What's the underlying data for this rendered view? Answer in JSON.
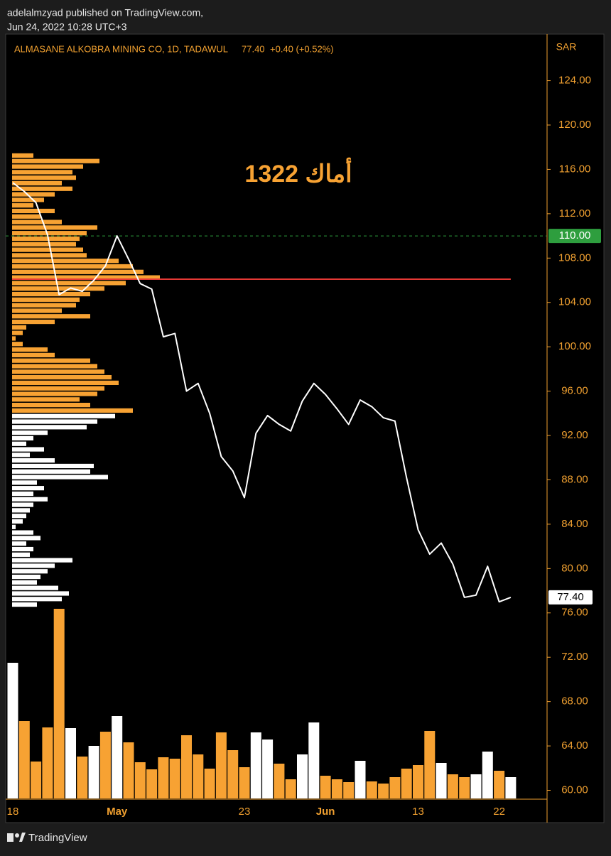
{
  "chart_data": {
    "type": "line",
    "source": "adelalmzyad published on TradingView.com,",
    "subtitle": "Jun 24, 2022 10:28 UTC+3",
    "title": "ALMASANE ALKOBRA MINING CO, 1D, TADAWUL",
    "legend_price": "77.40",
    "legend_change": "+0.40 (+0.52%)",
    "currency": "SAR",
    "annotation": "أماك 1322",
    "brand": "TradingView",
    "categories": [
      "18",
      null,
      null,
      null,
      null,
      null,
      null,
      null,
      null,
      "May",
      null,
      null,
      null,
      null,
      null,
      null,
      null,
      null,
      null,
      null,
      "23",
      null,
      null,
      null,
      null,
      null,
      null,
      "Jun",
      null,
      null,
      null,
      null,
      null,
      null,
      null,
      "13",
      null,
      null,
      null,
      null,
      null,
      null,
      "22",
      null
    ],
    "values": [
      114.8,
      114.0,
      113.0,
      110.1,
      104.7,
      105.3,
      105.0,
      106.0,
      107.3,
      110.0,
      107.9,
      105.7,
      105.2,
      100.9,
      101.2,
      96.0,
      96.7,
      94.0,
      90.1,
      88.8,
      86.4,
      92.2,
      93.8,
      93.0,
      92.4,
      95.1,
      96.7,
      95.7,
      94.4,
      93.0,
      95.2,
      94.6,
      93.6,
      93.3,
      88.2,
      83.5,
      81.3,
      82.3,
      80.4,
      77.4,
      77.6,
      80.2,
      77.0,
      77.4
    ],
    "color": "#ffffff",
    "volume": {
      "values": [
        191,
        109,
        52,
        100,
        267,
        99,
        59,
        74,
        94,
        116,
        79,
        51,
        41,
        58,
        56,
        89,
        62,
        42,
        93,
        68,
        44,
        93,
        83,
        49,
        27,
        62,
        107,
        32,
        27,
        23,
        53,
        24,
        21,
        30,
        42,
        47,
        95,
        50,
        34,
        30,
        34,
        66,
        39,
        30
      ],
      "colors": [
        "#ffffff",
        "#f7a233",
        "#f7a233",
        "#f7a233",
        "#f7a233",
        "#ffffff",
        "#f7a233",
        "#ffffff",
        "#f7a233",
        "#ffffff",
        "#f7a233",
        "#f7a233",
        "#f7a233",
        "#f7a233",
        "#f7a233",
        "#f7a233",
        "#f7a233",
        "#f7a233",
        "#f7a233",
        "#f7a233",
        "#f7a233",
        "#ffffff",
        "#ffffff",
        "#f7a233",
        "#f7a233",
        "#ffffff",
        "#ffffff",
        "#f7a233",
        "#f7a233",
        "#f7a233",
        "#ffffff",
        "#f7a233",
        "#f7a233",
        "#f7a233",
        "#f7a233",
        "#f7a233",
        "#f7a233",
        "#ffffff",
        "#f7a233",
        "#f7a233",
        "#ffffff",
        "#ffffff",
        "#f7a233",
        "#ffffff"
      ]
    },
    "volume_profile": [
      {
        "color": "#ffffff",
        "bins": [
          76.5,
          77,
          77.5,
          78,
          78.5,
          79,
          79.5,
          80,
          80.5,
          81,
          81.5,
          82,
          82.5,
          83,
          83.5,
          84,
          84.5,
          85,
          85.5,
          86,
          86.5,
          87,
          87.5,
          88,
          88.5,
          89,
          89.5,
          90,
          90.5,
          91,
          91.5,
          92,
          92.5,
          93,
          93.5,
          94
        ],
        "values": [
          35,
          70,
          80,
          65,
          35,
          40,
          50,
          60,
          85,
          25,
          30,
          20,
          40,
          30,
          5,
          15,
          20,
          25,
          30,
          50,
          30,
          45,
          35,
          135,
          110,
          115,
          60,
          25,
          45,
          20,
          30,
          50,
          105,
          120,
          145
        ]
      },
      {
        "color": "#f7a233",
        "bins": [
          94,
          94.5,
          95,
          95.5,
          96,
          96.5,
          97,
          97.5,
          98,
          98.5,
          99,
          99.5,
          100,
          100.5,
          101,
          101.5,
          102,
          102.5,
          103,
          103.5,
          104,
          104.5,
          105,
          105.5,
          106,
          106.5,
          107,
          107.5,
          108,
          108.5,
          109,
          109.5,
          110,
          110.5,
          111,
          111.5,
          112,
          112.5,
          113,
          113.5,
          114,
          114.5,
          115,
          115.5,
          116,
          116.5,
          117,
          117.5
        ],
        "values": [
          170,
          110,
          95,
          120,
          130,
          150,
          140,
          130,
          120,
          110,
          60,
          50,
          15,
          5,
          15,
          20,
          60,
          110,
          70,
          90,
          95,
          110,
          130,
          160,
          208,
          185,
          170,
          150,
          105,
          100,
          90,
          95,
          105,
          120,
          70,
          40,
          60,
          30,
          45,
          60,
          85,
          70,
          90,
          85,
          100,
          123,
          30
        ]
      }
    ],
    "poc_price": 106.1,
    "poc_color": "#e53935",
    "alert_price": {
      "value": 110,
      "label": "110.00"
    },
    "alert_color": "#2e9e3e",
    "last_price": {
      "value": 77.4,
      "label": "77.40"
    },
    "ylim": [
      59.2,
      128.2
    ],
    "yticks": [
      {
        "value": 60,
        "label": "60.00"
      },
      {
        "value": 64,
        "label": "64.00"
      },
      {
        "value": 68,
        "label": "68.00"
      },
      {
        "value": 72,
        "label": "72.00"
      },
      {
        "value": 76,
        "label": "76.00"
      },
      {
        "value": 80,
        "label": "80.00"
      },
      {
        "value": 84,
        "label": "84.00"
      },
      {
        "value": 88,
        "label": "88.00"
      },
      {
        "value": 92,
        "label": "92.00"
      },
      {
        "value": 96,
        "label": "96.00"
      },
      {
        "value": 100,
        "label": "100.00"
      },
      {
        "value": 104,
        "label": "104.00"
      },
      {
        "value": 108,
        "label": "108.00"
      },
      {
        "value": 112,
        "label": "112.00"
      },
      {
        "value": 116,
        "label": "116.00"
      },
      {
        "value": 120,
        "label": "120.00"
      },
      {
        "value": 124,
        "label": "124.00"
      }
    ],
    "axis_color": "#f0a030",
    "grid": false
  }
}
